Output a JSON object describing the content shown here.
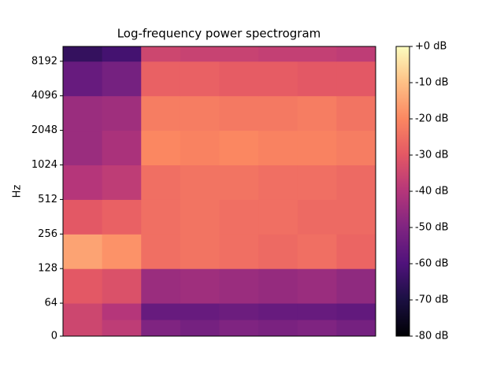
{
  "chart_data": {
    "type": "spectrogram",
    "title": "Log-frequency power spectrogram",
    "ylabel": "Hz",
    "ylim": [
      0,
      11025
    ],
    "yticks": [
      0,
      64,
      128,
      256,
      512,
      1024,
      2048,
      4096,
      8192
    ],
    "freq_edges": [
      0,
      32,
      64,
      128,
      256,
      512,
      1024,
      2048,
      4096,
      8192,
      11025
    ],
    "categories": [
      null,
      null,
      null,
      null,
      null,
      null,
      null,
      null
    ],
    "values": [
      [
        -35,
        -38,
        -50,
        -52,
        -50,
        -51,
        -50,
        -52
      ],
      [
        -35,
        -40,
        -55,
        -55,
        -54,
        -55,
        -55,
        -56
      ],
      [
        -30,
        -32,
        -45,
        -44,
        -45,
        -46,
        -45,
        -47
      ],
      [
        -15,
        -18,
        -25,
        -24,
        -25,
        -26,
        -25,
        -27
      ],
      [
        -30,
        -28,
        -25,
        -24,
        -25,
        -25,
        -26,
        -26
      ],
      [
        -40,
        -38,
        -25,
        -24,
        -24,
        -25,
        -25,
        -26
      ],
      [
        -45,
        -42,
        -20,
        -21,
        -20,
        -21,
        -21,
        -22
      ],
      [
        -45,
        -44,
        -22,
        -22,
        -23,
        -23,
        -22,
        -24
      ],
      [
        -55,
        -52,
        -28,
        -28,
        -29,
        -29,
        -30,
        -30
      ],
      [
        -65,
        -62,
        -35,
        -36,
        -36,
        -37,
        -37,
        -38
      ]
    ],
    "clim": [
      -80,
      0
    ],
    "cticks": [
      {
        "value": 0,
        "label": "+0 dB"
      },
      {
        "value": -10,
        "label": "-10 dB"
      },
      {
        "value": -20,
        "label": "-20 dB"
      },
      {
        "value": -30,
        "label": "-30 dB"
      },
      {
        "value": -40,
        "label": "-40 dB"
      },
      {
        "value": -50,
        "label": "-50 dB"
      },
      {
        "value": -60,
        "label": "-60 dB"
      },
      {
        "value": -70,
        "label": "-70 dB"
      },
      {
        "value": -80,
        "label": "-80 dB"
      }
    ],
    "colormap": "magma"
  }
}
